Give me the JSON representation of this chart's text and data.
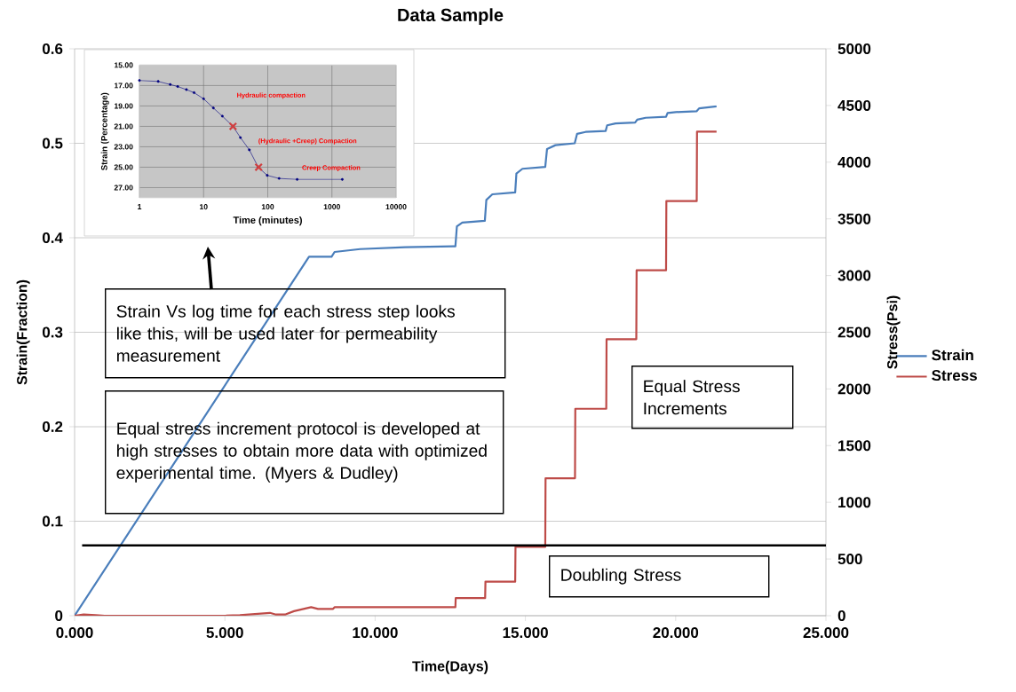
{
  "chart_data": [
    {
      "type": "line",
      "title": "Data Sample",
      "xlabel": "Time(Days)",
      "ylabel": "Strain(Fraction)",
      "y2label": "Stress(Psi)",
      "xlim": [
        0,
        25
      ],
      "xticks": [
        {
          "value": 0,
          "label": "0.000"
        },
        {
          "value": 5,
          "label": "5.000"
        },
        {
          "value": 10,
          "label": "10.000"
        },
        {
          "value": 15,
          "label": "15.000"
        },
        {
          "value": 20,
          "label": "20.000"
        },
        {
          "value": 25,
          "label": "25.000"
        }
      ],
      "ylim": [
        0,
        0.6
      ],
      "yticks": [
        0,
        0.1,
        0.2,
        0.3,
        0.4,
        0.5,
        0.6
      ],
      "y2lim": [
        0,
        5000
      ],
      "y2ticks": [
        0,
        500,
        1000,
        1500,
        2000,
        2500,
        3000,
        3500,
        4000,
        4500,
        5000
      ],
      "grid": "y",
      "legend": "right",
      "line_style": "solid",
      "series": [
        {
          "name": "Strain",
          "color": "#4a7ebb",
          "x": [
            0,
            7.8,
            8.55,
            8.65,
            9.5,
            11,
            12.67,
            12.72,
            12.9,
            13.65,
            13.7,
            13.9,
            14.66,
            14.7,
            14.9,
            15.66,
            15.72,
            16,
            16.64,
            16.72,
            17,
            17.67,
            17.72,
            18,
            18.65,
            18.72,
            19,
            19.68,
            19.73,
            20,
            20.7,
            20.78,
            21.36
          ],
          "values": [
            0,
            0.38,
            0.38,
            0.385,
            0.388,
            0.39,
            0.391,
            0.412,
            0.416,
            0.418,
            0.44,
            0.446,
            0.448,
            0.468,
            0.473,
            0.475,
            0.494,
            0.498,
            0.5,
            0.51,
            0.512,
            0.513,
            0.519,
            0.521,
            0.522,
            0.525,
            0.527,
            0.528,
            0.532,
            0.533,
            0.534,
            0.537,
            0.539
          ]
        },
        {
          "name": "Stress",
          "color": "#be4b48",
          "axis": "y2",
          "x": [
            0,
            0.3,
            0.7,
            1,
            5,
            5.5,
            6.5,
            6.7,
            7,
            7.3,
            7.87,
            8.1,
            8.6,
            8.65,
            12.67,
            12.68,
            13.66,
            13.67,
            14.66,
            14.67,
            15.66,
            15.67,
            16.65,
            16.66,
            17.69,
            17.7,
            18.69,
            18.7,
            19.68,
            19.69,
            20.7,
            20.71,
            21.36
          ],
          "values": [
            0,
            10,
            5,
            0,
            0,
            5,
            25,
            10,
            10,
            40,
            75,
            60,
            60,
            75,
            75,
            155,
            155,
            300,
            300,
            607,
            607,
            1212,
            1212,
            1825,
            1825,
            2439,
            2439,
            3046,
            3046,
            3657,
            3657,
            4270,
            4270
          ]
        }
      ],
      "ref_lines": [
        {
          "axis": "y2",
          "value": 620,
          "color": "#000000"
        }
      ],
      "annotations": [
        "Strain Vs log time for each stress step looks like this, will be used later for permeability measurement",
        "Equal stress increment protocol is developed at high stresses to obtain more data with optimized experimental time. (Myers & Dudley)",
        "Equal Stress Increments",
        "Doubling Stress"
      ]
    },
    {
      "type": "line",
      "xlabel": "Time (minutes)",
      "ylabel": "Strain (Percentage)",
      "log": "x",
      "grid": true,
      "marker": "circle",
      "xlim": [
        1,
        10000
      ],
      "xticks": [
        1,
        10,
        100,
        1000,
        10000
      ],
      "ylim": [
        28,
        15
      ],
      "yticks": [
        {
          "value": 15,
          "label": "15.00"
        },
        {
          "value": 17,
          "label": "17.00"
        },
        {
          "value": 19,
          "label": "19.00"
        },
        {
          "value": 21,
          "label": "21.00"
        },
        {
          "value": 23,
          "label": "23.00"
        },
        {
          "value": 25,
          "label": "25.00"
        },
        {
          "value": 27,
          "label": "27.00"
        }
      ],
      "series": [
        {
          "color": "#00007f",
          "x": [
            1,
            1.96,
            3.02,
            3.95,
            5.4,
            7.1,
            10,
            14.2,
            19.6,
            28.7,
            37.5,
            51.6,
            71,
            98,
            150,
            287,
            1450
          ],
          "values": [
            16.5,
            16.6,
            16.9,
            17.1,
            17.4,
            17.7,
            18.3,
            19.2,
            20,
            21,
            22.1,
            23.3,
            25,
            25.8,
            26.1,
            26.2,
            26.2
          ]
        },
        {
          "type": "scatter",
          "marker": "cross",
          "color": "#d04040",
          "x": [
            28.7,
            72
          ],
          "values": [
            21.0,
            25.0
          ]
        }
      ],
      "annotations": [
        "Hydraulic  compaction",
        "(Hydraulic +Creep) Compaction",
        "Creep Compaction"
      ]
    }
  ]
}
